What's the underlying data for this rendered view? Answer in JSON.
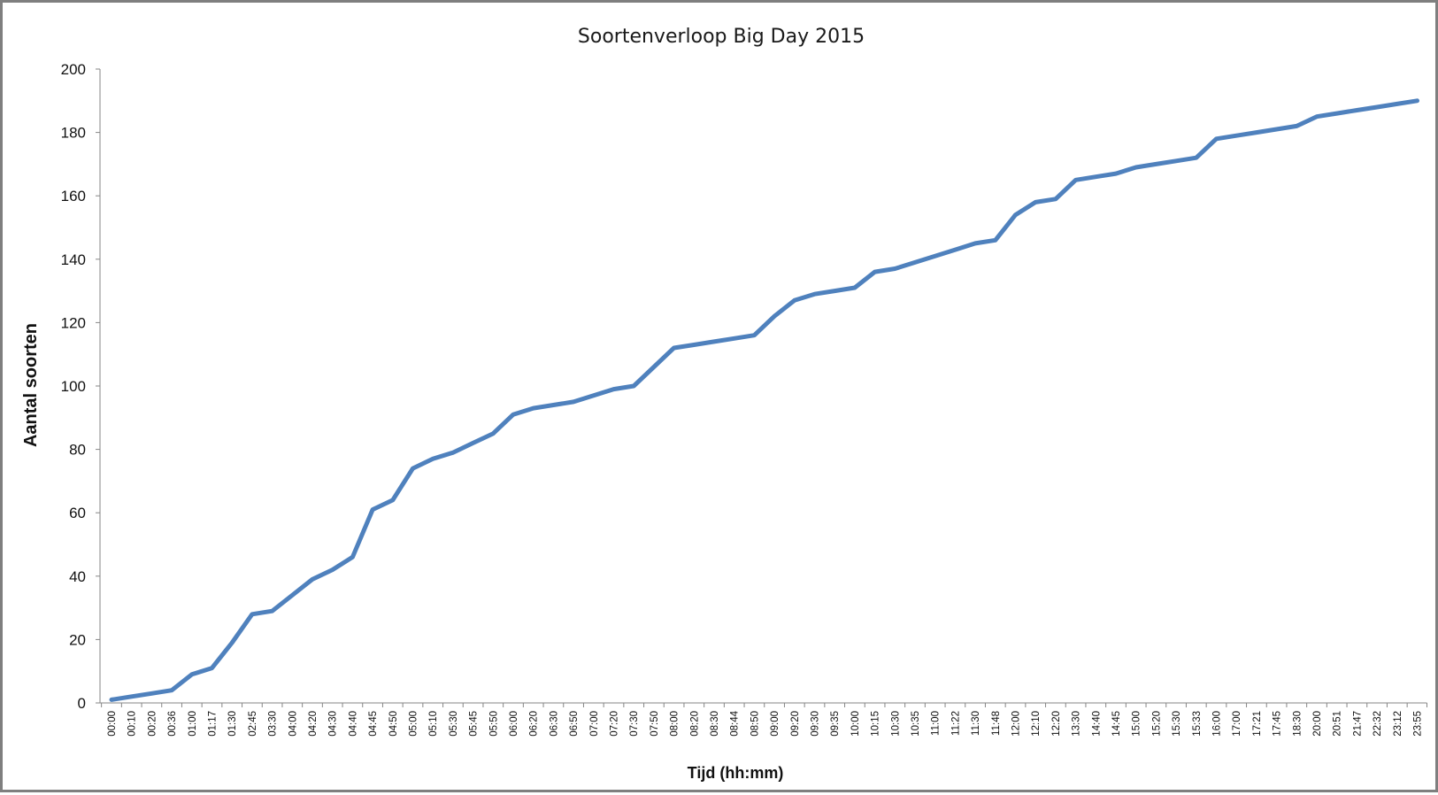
{
  "chart_data": {
    "type": "line",
    "title": "Soortenverloop Big Day 2015",
    "xlabel": "Tijd (hh:mm)",
    "ylabel": "Aantal soorten",
    "ylim": [
      0,
      200
    ],
    "yticks": [
      0,
      20,
      40,
      60,
      80,
      100,
      120,
      140,
      160,
      180,
      200
    ],
    "grid": false,
    "legend": "none",
    "line_color": "#4f81bd",
    "categories": [
      "00:00",
      "00:10",
      "00:20",
      "00:36",
      "01:00",
      "01:17",
      "01:30",
      "02:45",
      "03:30",
      "04:00",
      "04:20",
      "04:30",
      "04:40",
      "04:45",
      "04:50",
      "05:00",
      "05:10",
      "05:30",
      "05:45",
      "05:50",
      "06:00",
      "06:20",
      "06:30",
      "06:50",
      "07:00",
      "07:20",
      "07:30",
      "07:50",
      "08:00",
      "08:20",
      "08:30",
      "08:44",
      "08:50",
      "09:00",
      "09:20",
      "09:30",
      "09:35",
      "10:00",
      "10:15",
      "10:30",
      "10:35",
      "11:00",
      "11:22",
      "11:30",
      "11:48",
      "12:00",
      "12:10",
      "12:20",
      "13:30",
      "14:40",
      "14:45",
      "15:00",
      "15:20",
      "15:30",
      "15:33",
      "16:00",
      "17:00",
      "17:21",
      "17:45",
      "18:30",
      "20:00",
      "20:51",
      "21:47",
      "22:32",
      "23:12",
      "23:55"
    ],
    "series": [
      {
        "values": [
          1,
          2,
          3,
          4,
          9,
          11,
          19,
          28,
          29,
          34,
          39,
          42,
          46,
          61,
          64,
          74,
          77,
          79,
          82,
          85,
          91,
          93,
          94,
          95,
          97,
          99,
          100,
          106,
          112,
          113,
          114,
          115,
          116,
          122,
          127,
          129,
          130,
          131,
          136,
          137,
          139,
          141,
          143,
          145,
          146,
          154,
          158,
          159,
          165,
          166,
          167,
          169,
          170,
          171,
          172,
          178,
          179,
          180,
          181,
          182,
          185,
          186,
          187,
          188,
          189,
          190
        ]
      }
    ]
  }
}
